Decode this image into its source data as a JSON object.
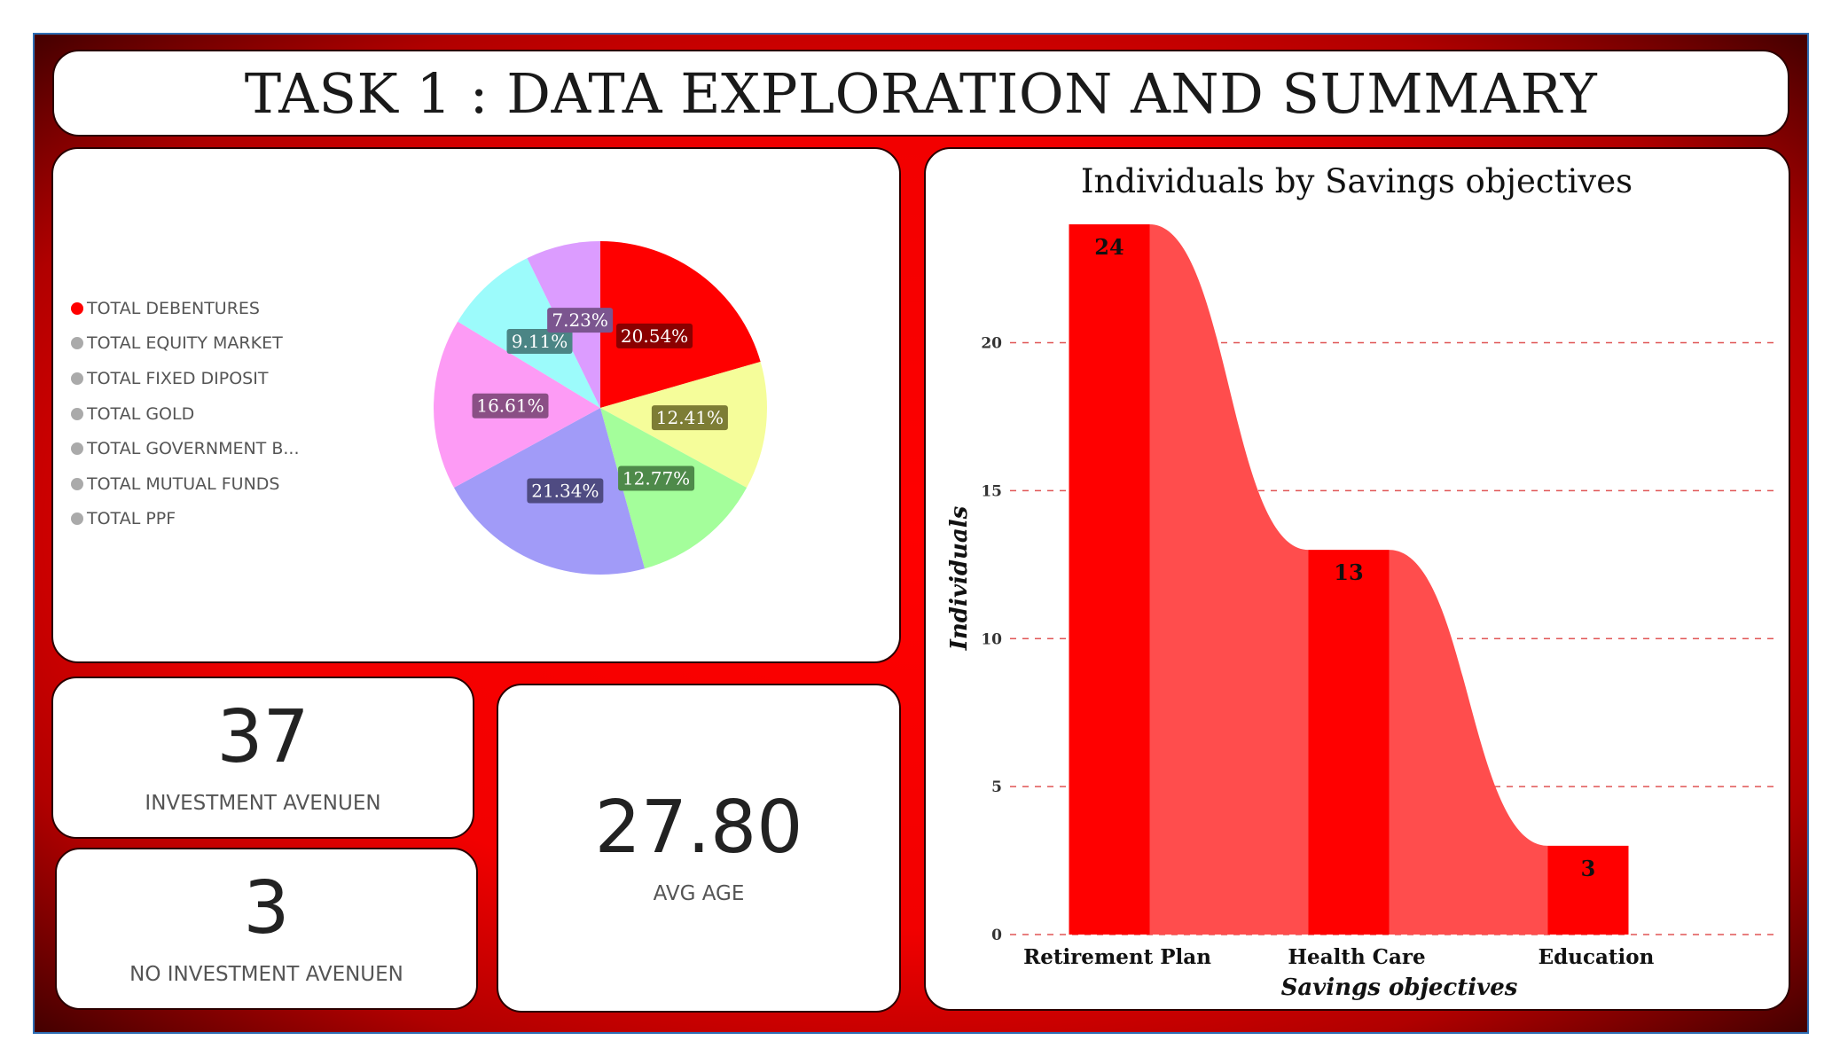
{
  "title": "TASK 1 : DATA EXPLORATION AND SUMMARY",
  "colors": {
    "accent": "#ff0000",
    "frame_border": "#2f6fb5",
    "bar_fill": "#ff0000",
    "ribbon_fill": "#ff4d4d",
    "grid_line": "#e05555"
  },
  "pie": {
    "legend": [
      {
        "label": "TOTAL DEBENTURES",
        "color": "#ff0000"
      },
      {
        "label": "TOTAL EQUITY MARKET",
        "color": "#aaaaaa"
      },
      {
        "label": "TOTAL FIXED DIPOSIT",
        "color": "#aaaaaa"
      },
      {
        "label": "TOTAL GOLD",
        "color": "#aaaaaa"
      },
      {
        "label": "TOTAL GOVERNMENT B...",
        "color": "#aaaaaa"
      },
      {
        "label": "TOTAL MUTUAL FUNDS",
        "color": "#aaaaaa"
      },
      {
        "label": "TOTAL PPF",
        "color": "#aaaaaa"
      }
    ]
  },
  "kpis": {
    "investment_avenues": {
      "value": "37",
      "label": "INVESTMENT AVENUEN"
    },
    "no_investment_avenues": {
      "value": "3",
      "label": "NO INVESTMENT AVENUEN"
    },
    "avg_age": {
      "value": "27.80",
      "label": "AVG AGE"
    }
  },
  "chart_data": [
    {
      "type": "pie",
      "slices": [
        {
          "value": 20.54,
          "label": "20.54%",
          "color": "#ff0000",
          "label_bg": "#8b0000"
        },
        {
          "value": 12.41,
          "label": "12.41%",
          "color": "#f5fd9a",
          "label_bg": "#7d7d35"
        },
        {
          "value": 12.77,
          "label": "12.77%",
          "color": "#a4fe9b",
          "label_bg": "#4e8a4a"
        },
        {
          "value": 21.34,
          "label": "21.34%",
          "color": "#a19bf8",
          "label_bg": "#4f4b82"
        },
        {
          "value": 16.61,
          "label": "16.61%",
          "color": "#fd9bf5",
          "label_bg": "#8a4f85"
        },
        {
          "value": 9.11,
          "label": "9.11%",
          "color": "#9cfbfb",
          "label_bg": "#4b8585"
        },
        {
          "value": 7.23,
          "label": "7.23%",
          "color": "#dc9cff",
          "label_bg": "#7b558f"
        }
      ]
    },
    {
      "type": "bar",
      "title": "Individuals by Savings objectives",
      "xlabel": "Savings objectives",
      "ylabel": "Individuals",
      "categories": [
        "Retirement Plan",
        "Health Care",
        "Education"
      ],
      "values": [
        24,
        13,
        3
      ],
      "ylim": [
        0,
        24
      ],
      "yticks": [
        0,
        5,
        10,
        15,
        20
      ],
      "grid": true
    }
  ]
}
